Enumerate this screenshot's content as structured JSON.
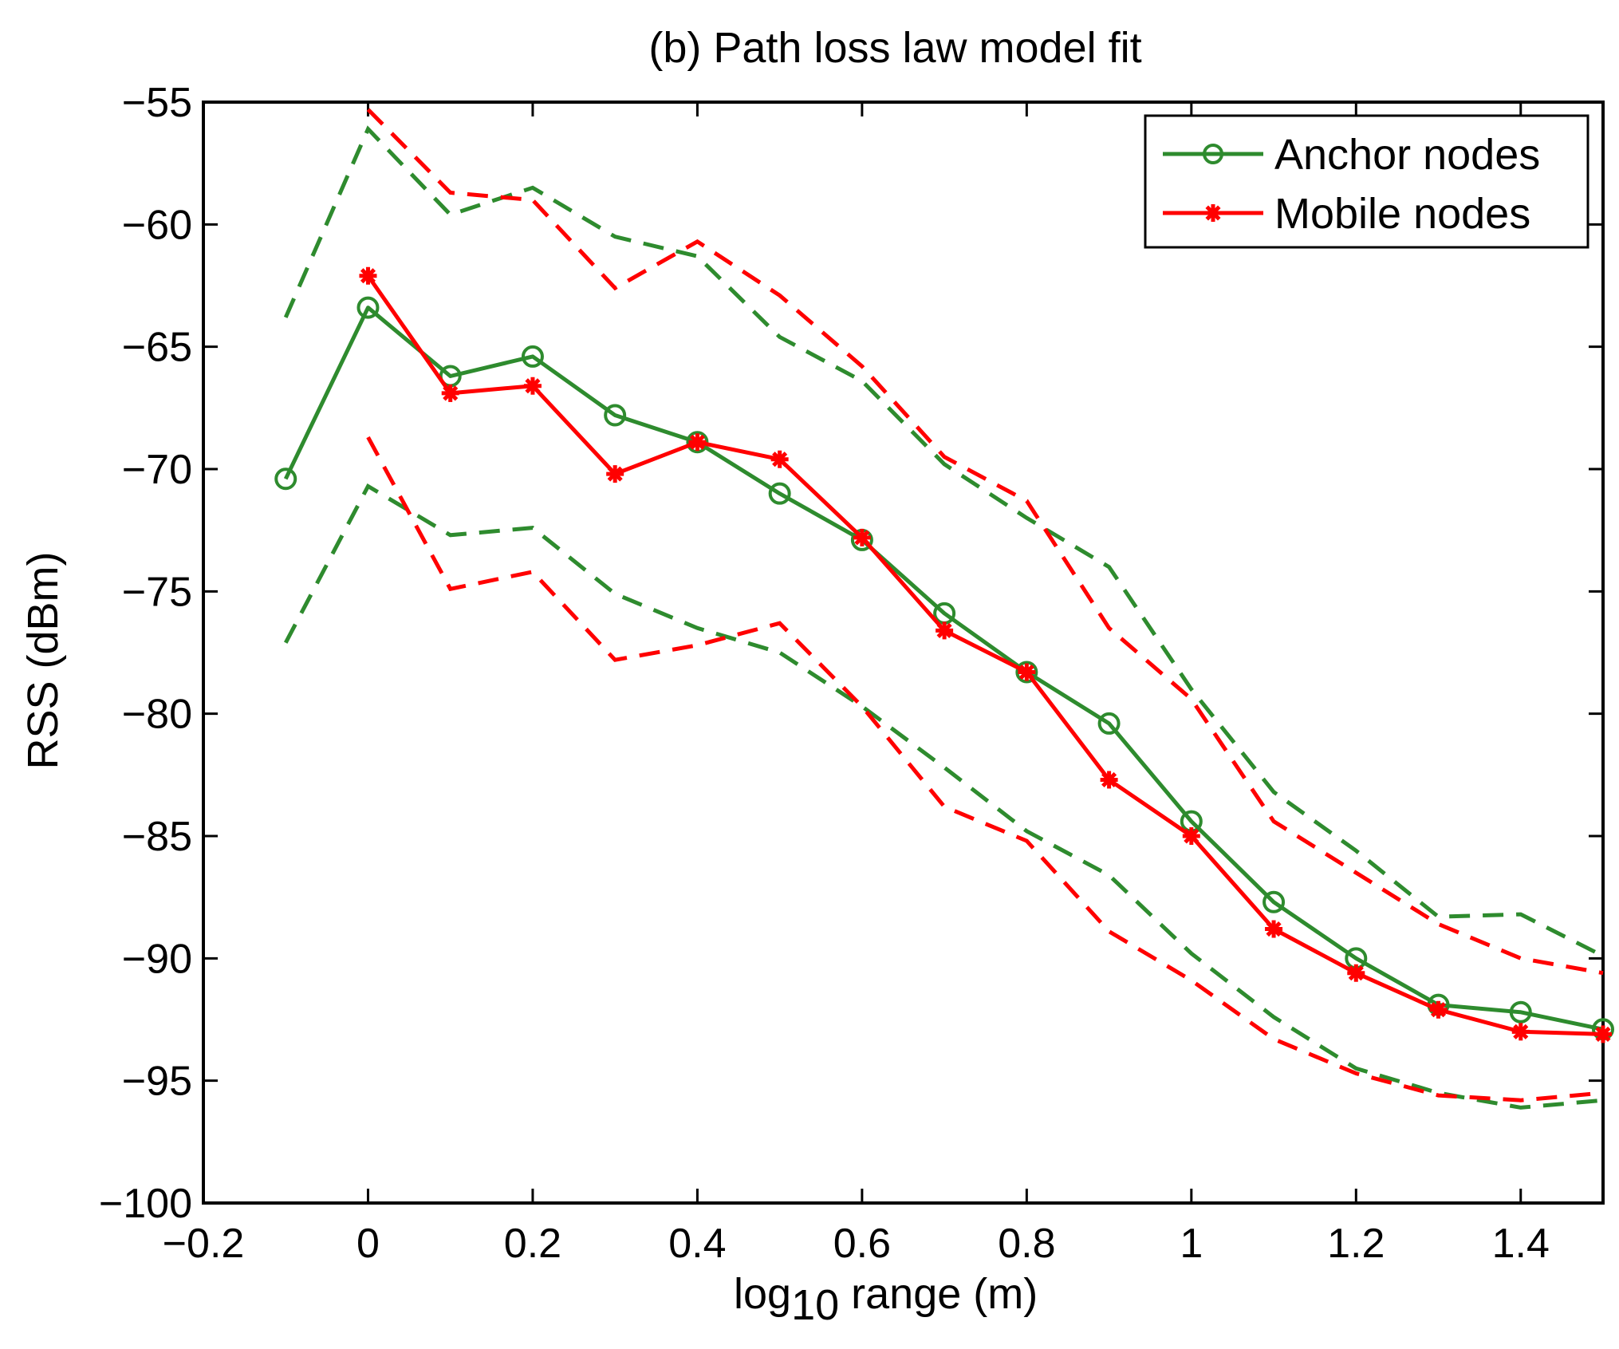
{
  "chart_data": {
    "type": "line",
    "title": "(b) Path loss law model fit",
    "xlabel": {
      "base": "log",
      "subscript": "10",
      "rest": " range (m)"
    },
    "ylabel": "RSS (dBm)",
    "xlim": [
      -0.2,
      1.5
    ],
    "ylim": [
      -100,
      -55
    ],
    "xticks": [
      -0.2,
      0,
      0.2,
      0.4,
      0.6,
      0.8,
      1,
      1.2,
      1.4
    ],
    "xtick_labels": [
      "−0.2",
      "0",
      "0.2",
      "0.4",
      "0.6",
      "0.8",
      "1",
      "1.2",
      "1.4"
    ],
    "yticks": [
      -55,
      -60,
      -65,
      -70,
      -75,
      -80,
      -85,
      -90,
      -95,
      -100
    ],
    "ytick_labels": [
      "−55",
      "−60",
      "−65",
      "−70",
      "−75",
      "−80",
      "−85",
      "−90",
      "−95",
      "−100"
    ],
    "grid": false,
    "legend_position": "top-right",
    "series": [
      {
        "name": "Anchor nodes",
        "color": "#2e8b2e",
        "marker": "circle",
        "x": [
          -0.1,
          0,
          0.1,
          0.2,
          0.3,
          0.4,
          0.5,
          0.6,
          0.7,
          0.8,
          0.9,
          1.0,
          1.1,
          1.2,
          1.3,
          1.4,
          1.5
        ],
        "y": [
          -70.4,
          -63.4,
          -66.2,
          -65.4,
          -67.8,
          -68.9,
          -71.0,
          -72.9,
          -75.9,
          -78.3,
          -80.4,
          -84.4,
          -87.7,
          -90.0,
          -91.9,
          -92.2,
          -92.9
        ],
        "upper": [
          -63.8,
          -56.1,
          -59.6,
          -58.5,
          -60.5,
          -61.3,
          -64.6,
          -66.4,
          -69.8,
          -72.0,
          -74.0,
          -79.0,
          -83.2,
          -85.6,
          -88.3,
          -88.2,
          -89.9
        ],
        "lower": [
          -77.1,
          -70.7,
          -72.7,
          -72.4,
          -75.1,
          -76.5,
          -77.5,
          -79.7,
          -82.2,
          -84.8,
          -86.6,
          -89.8,
          -92.4,
          -94.5,
          -95.5,
          -96.1,
          -95.8
        ]
      },
      {
        "name": "Mobile nodes",
        "color": "#ff0000",
        "marker": "star",
        "x": [
          0,
          0.1,
          0.2,
          0.3,
          0.4,
          0.5,
          0.6,
          0.7,
          0.8,
          0.9,
          1.0,
          1.1,
          1.2,
          1.3,
          1.4,
          1.5
        ],
        "y": [
          -62.1,
          -66.9,
          -66.6,
          -70.2,
          -68.9,
          -69.6,
          -72.8,
          -76.6,
          -78.3,
          -82.7,
          -85.0,
          -88.8,
          -90.6,
          -92.1,
          -93.0,
          -93.1
        ],
        "upper": [
          -55.3,
          -58.7,
          -59.0,
          -62.6,
          -60.7,
          -62.9,
          -65.8,
          -69.5,
          -71.3,
          -76.5,
          -79.4,
          -84.4,
          -86.5,
          -88.6,
          -90.0,
          -90.6
        ],
        "lower": [
          -68.7,
          -74.9,
          -74.2,
          -77.8,
          -77.2,
          -76.3,
          -79.7,
          -83.8,
          -85.2,
          -88.9,
          -90.9,
          -93.3,
          -94.7,
          -95.6,
          -95.8,
          -95.5
        ]
      }
    ]
  }
}
